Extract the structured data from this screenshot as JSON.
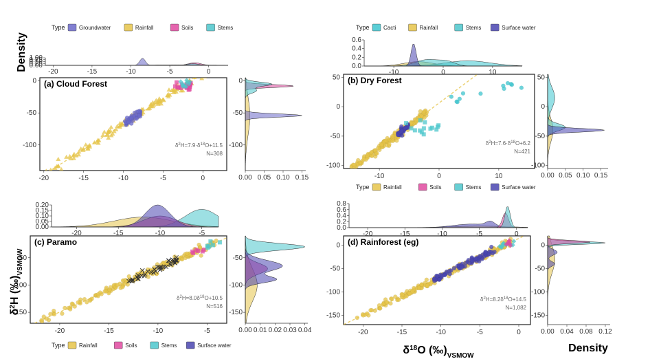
{
  "global_labels": {
    "density_top": "Density",
    "density_bottom": "Density",
    "y_label_main": "δ",
    "y_label_sup": "2",
    "y_label_tail": "H (‰)",
    "y_label_sub": "VSMOW",
    "x_label_main": "δ",
    "x_label_sup": "18",
    "x_label_tail": "O (‰)",
    "x_label_sub": "VSMOW"
  },
  "legend_title": "Type",
  "colors": {
    "Groundwater": "#6b69c9",
    "Rainfall": "#e6c44a",
    "Soils": "#e04aa0",
    "Stems": "#4dc7cc",
    "Surface water": "#4a45b0",
    "Cacti": "#3ec6cf",
    "Overlap": "#5b2a86"
  },
  "chart_data": [
    {
      "id": "a",
      "type": "scatter",
      "title": "(a) Cloud Forest",
      "legend": [
        "Groundwater",
        "Rainfall",
        "Soils",
        "Stems"
      ],
      "xlim": [
        -20.5,
        3
      ],
      "ylim": [
        -140,
        5
      ],
      "xticks": [
        -20,
        -15,
        -10,
        -5,
        0
      ],
      "yticks": [
        0,
        -50,
        -100
      ],
      "equation": {
        "pre": "δ",
        "sup1": "2",
        "mid": "H=7.9·δ",
        "sup2": "18",
        "post": "O+11.5"
      },
      "n_label": "N=308",
      "regression": {
        "slope": 7.9,
        "intercept": 11.5
      },
      "series": [
        {
          "name": "Rainfall",
          "marker": "triangle",
          "x_range": [
            -20,
            2
          ],
          "n": 150
        },
        {
          "name": "Groundwater",
          "marker": "circle",
          "x_range": [
            -9.8,
            -7.8
          ],
          "n": 40
        },
        {
          "name": "Soils",
          "marker": "square",
          "x_range": [
            -3.5,
            -1.5
          ],
          "n": 20
        },
        {
          "name": "Stems",
          "marker": "diamond",
          "x_range": [
            -2.8,
            -1.5
          ],
          "n": 10
        }
      ],
      "top_density": {
        "xlim": [
          -21,
          2.5
        ],
        "ylim": [
          0,
          1.0
        ],
        "xticks": [
          -20,
          -15,
          -10,
          -5,
          0
        ],
        "yticks": [
          1.0,
          0.75,
          0.5,
          0.25,
          0.0
        ],
        "ytick_labels": [
          "1.00",
          "0.75",
          "0.50",
          "0.25",
          "0.00"
        ],
        "curves": [
          {
            "name": "Rainfall",
            "peaks": [
              {
                "m": -4,
                "s": 4.5,
                "h": 0.06
              }
            ]
          },
          {
            "name": "Soils",
            "peaks": [
              {
                "m": -1.8,
                "s": 0.8,
                "h": 0.35
              }
            ]
          },
          {
            "name": "Stems",
            "peaks": [
              {
                "m": -2.0,
                "s": 0.7,
                "h": 0.22
              }
            ]
          },
          {
            "name": "Groundwater",
            "peaks": [
              {
                "m": -8.5,
                "s": 0.35,
                "h": 0.95
              }
            ]
          }
        ]
      },
      "side_density": {
        "xlim": [
          0,
          0.16
        ],
        "ylim": [
          -140,
          5
        ],
        "xticks": [
          0.0,
          0.05,
          0.1,
          0.15
        ],
        "xtick_labels": [
          "0.00",
          "0.05",
          "0.10",
          "0.15"
        ],
        "yticks": [
          0,
          -50,
          -100
        ],
        "curves": [
          {
            "name": "Rainfall",
            "peaks": [
              {
                "m": -55,
                "s": 30,
                "h": 0.012
              }
            ]
          },
          {
            "name": "Groundwater",
            "peaks": [
              {
                "m": -54,
                "s": 2.5,
                "h": 0.15
              }
            ]
          },
          {
            "name": "Soils",
            "peaks": [
              {
                "m": -8,
                "s": 2.2,
                "h": 0.13
              }
            ]
          },
          {
            "name": "Stems",
            "peaks": [
              {
                "m": -5,
                "s": 3,
                "h": 0.07
              },
              {
                "m": -15,
                "s": 4,
                "h": 0.03
              }
            ]
          }
        ]
      }
    },
    {
      "id": "b",
      "type": "scatter",
      "title": "(b) Dry Forest",
      "legend": [
        "Cacti",
        "Rainfall",
        "Stems",
        "Surface water"
      ],
      "xlim": [
        -16,
        16
      ],
      "ylim": [
        -105,
        55
      ],
      "xticks": [
        -10,
        0,
        10
      ],
      "yticks": [
        50,
        0,
        -50,
        -100
      ],
      "equation": {
        "pre": "δ",
        "sup1": "2",
        "mid": "H=7.6·δ",
        "sup2": "18",
        "post": "O+6.2"
      },
      "n_label": "N=421",
      "regression": {
        "slope": 7.6,
        "intercept": 6.2
      },
      "series": [
        {
          "name": "Rainfall",
          "marker": "circle",
          "x_range": [
            -15,
            -2
          ],
          "n": 160
        },
        {
          "name": "Surface water",
          "marker": "circle",
          "x_range": [
            -7,
            -5
          ],
          "n": 40
        },
        {
          "name": "Stems",
          "marker": "square",
          "x_range": [
            -6,
            1
          ],
          "n": 14
        },
        {
          "name": "Cacti",
          "marker": "circle",
          "x_range": [
            2,
            14
          ],
          "n": 12
        }
      ],
      "top_density": {
        "xlim": [
          -16,
          16
        ],
        "ylim": [
          0,
          0.6
        ],
        "xticks": [
          -10,
          0,
          10
        ],
        "yticks": [
          0.6,
          0.4,
          0.2,
          0.0
        ],
        "ytick_labels": [
          "0.6",
          "0.4",
          "0.2",
          "0.0"
        ],
        "curves": [
          {
            "name": "Rainfall",
            "peaks": [
              {
                "m": -5,
                "s": 3,
                "h": 0.1
              }
            ]
          },
          {
            "name": "Cacti",
            "peaks": [
              {
                "m": 5,
                "s": 4.5,
                "h": 0.12
              }
            ]
          },
          {
            "name": "Stems",
            "peaks": [
              {
                "m": -3,
                "s": 2.5,
                "h": 0.15
              },
              {
                "m": 1,
                "s": 1.5,
                "h": 0.08
              }
            ]
          },
          {
            "name": "Surface water",
            "peaks": [
              {
                "m": -6,
                "s": 0.5,
                "h": 0.52
              }
            ]
          }
        ]
      },
      "side_density": {
        "xlim": [
          0,
          0.17
        ],
        "ylim": [
          -105,
          55
        ],
        "xticks": [
          0.0,
          0.05,
          0.1,
          0.15
        ],
        "xtick_labels": [
          "0.00",
          "0.05",
          "0.10",
          "0.15"
        ],
        "yticks": [
          50,
          0,
          -50,
          -100
        ],
        "curves": [
          {
            "name": "Rainfall",
            "peaks": [
              {
                "m": -40,
                "s": 20,
                "h": 0.015
              }
            ]
          },
          {
            "name": "Cacti",
            "peaks": [
              {
                "m": 15,
                "s": 18,
                "h": 0.02
              }
            ]
          },
          {
            "name": "Stems",
            "peaks": [
              {
                "m": -35,
                "s": 6,
                "h": 0.05
              }
            ]
          },
          {
            "name": "Surface water",
            "peaks": [
              {
                "m": -40,
                "s": 3,
                "h": 0.16
              }
            ]
          }
        ]
      }
    },
    {
      "id": "c",
      "type": "scatter",
      "title": "(c) Paramo",
      "legend": [
        "Rainfall",
        "Soils",
        "Stems",
        "Surface water"
      ],
      "xlim": [
        -23,
        -3
      ],
      "ylim": [
        -170,
        -10
      ],
      "xticks": [
        -20,
        -15,
        -10,
        -5
      ],
      "yticks": [
        -50,
        -100,
        -150
      ],
      "equation": {
        "pre": "δ",
        "sup1": "2",
        "mid": "H=8.0δ",
        "sup2": "18",
        "post": "O+10.5"
      },
      "n_label": "N=516",
      "regression": {
        "slope": 8.0,
        "intercept": 10.5
      },
      "series": [
        {
          "name": "Rainfall",
          "marker": "circle",
          "x_range": [
            -22,
            -4
          ],
          "n": 170
        },
        {
          "name": "Surface water",
          "marker": "cross",
          "x_range": [
            -13,
            -8
          ],
          "n": 40
        },
        {
          "name": "Soils",
          "marker": "square",
          "x_range": [
            -7,
            -5
          ],
          "n": 6
        },
        {
          "name": "Stems",
          "marker": "square",
          "x_range": [
            -5,
            -3.5
          ],
          "n": 6
        }
      ],
      "top_density": {
        "xlim": [
          -23,
          -3
        ],
        "ylim": [
          0,
          0.2
        ],
        "xticks": [
          -20,
          -15,
          -10,
          -5
        ],
        "yticks": [
          0.2,
          0.15,
          0.1,
          0.05,
          0.0
        ],
        "ytick_labels": [
          "0.20",
          "0.15",
          "0.10",
          "0.05",
          "0.00"
        ],
        "curves": [
          {
            "name": "Rainfall",
            "peaks": [
              {
                "m": -12,
                "s": 3.5,
                "h": 0.09
              }
            ]
          },
          {
            "name": "Stems",
            "peaks": [
              {
                "m": -5,
                "s": 2,
                "h": 0.16
              }
            ]
          },
          {
            "name": "Soils",
            "peaks": [
              {
                "m": -10,
                "s": 2,
                "h": 0.1
              }
            ]
          },
          {
            "name": "Surface water",
            "peaks": [
              {
                "m": -10.3,
                "s": 1.5,
                "h": 0.2
              }
            ]
          }
        ]
      },
      "side_density": {
        "xlim": [
          0,
          0.042
        ],
        "ylim": [
          -170,
          -10
        ],
        "xticks": [
          0.0,
          0.01,
          0.02,
          0.03,
          0.04
        ],
        "xtick_labels": [
          "0.00",
          "0.01",
          "0.02",
          "0.03",
          "0.04"
        ],
        "yticks": [
          -50,
          -100,
          -150
        ],
        "curves": [
          {
            "name": "Rainfall",
            "peaks": [
              {
                "m": -100,
                "s": 30,
                "h": 0.008
              }
            ]
          },
          {
            "name": "Stems",
            "peaks": [
              {
                "m": -30,
                "s": 6,
                "h": 0.04
              }
            ]
          },
          {
            "name": "Soils",
            "peaks": [
              {
                "m": -70,
                "s": 10,
                "h": 0.015
              }
            ]
          },
          {
            "name": "Surface water",
            "peaks": [
              {
                "m": -65,
                "s": 10,
                "h": 0.025
              },
              {
                "m": -90,
                "s": 6,
                "h": 0.02
              }
            ]
          }
        ]
      }
    },
    {
      "id": "d",
      "type": "scatter",
      "title": "(d) Rainforest (eg)",
      "legend": [
        "Rainfall",
        "Soils",
        "Stems",
        "Surface water"
      ],
      "xlim": [
        -22.5,
        1.5
      ],
      "ylim": [
        -170,
        20
      ],
      "xticks": [
        -20,
        -15,
        -10,
        -5,
        0
      ],
      "yticks": [
        0,
        -50,
        -100,
        -150
      ],
      "equation": {
        "pre": "δ",
        "sup1": "2",
        "mid": "H=8.2δ",
        "sup2": "18",
        "post": "O+14.5"
      },
      "n_label": "N=1,082",
      "regression": {
        "slope": 8.2,
        "intercept": 14.5
      },
      "series": [
        {
          "name": "Rainfall",
          "marker": "circle",
          "x_range": [
            -21,
            -1
          ],
          "n": 200
        },
        {
          "name": "Surface water",
          "marker": "circle",
          "x_range": [
            -11,
            -3
          ],
          "n": 80
        },
        {
          "name": "Stems",
          "marker": "diamond",
          "x_range": [
            -2.5,
            -0.5
          ],
          "n": 12
        },
        {
          "name": "Soils",
          "marker": "diamond",
          "x_range": [
            -2,
            -1
          ],
          "n": 6
        }
      ],
      "top_density": {
        "xlim": [
          -22.5,
          1.5
        ],
        "ylim": [
          0,
          0.8
        ],
        "xticks": [
          -20,
          -15,
          -10,
          -5,
          0
        ],
        "yticks": [
          0.8,
          0.6,
          0.4,
          0.2,
          0.0
        ],
        "ytick_labels": [
          "0.8",
          "0.6",
          "0.4",
          "0.2",
          "0.0"
        ],
        "curves": [
          {
            "name": "Rainfall",
            "peaks": [
              {
                "m": -5,
                "s": 4,
                "h": 0.05
              }
            ]
          },
          {
            "name": "Surface water",
            "peaks": [
              {
                "m": -6,
                "s": 2.5,
                "h": 0.12
              },
              {
                "m": -3.5,
                "s": 0.6,
                "h": 0.15
              }
            ]
          },
          {
            "name": "Soils",
            "peaks": [
              {
                "m": -1.5,
                "s": 0.4,
                "h": 0.5
              }
            ]
          },
          {
            "name": "Stems",
            "peaks": [
              {
                "m": -1.2,
                "s": 0.35,
                "h": 0.72
              }
            ]
          }
        ]
      },
      "side_density": {
        "xlim": [
          0,
          0.13
        ],
        "ylim": [
          -170,
          20
        ],
        "xticks": [
          0.0,
          0.04,
          0.08,
          0.12
        ],
        "xtick_labels": [
          "0.00",
          "0.04",
          "0.08",
          "0.12"
        ],
        "yticks": [
          0,
          -50,
          -100,
          -150
        ],
        "curves": [
          {
            "name": "Rainfall",
            "peaks": [
              {
                "m": -30,
                "s": 30,
                "h": 0.015
              }
            ]
          },
          {
            "name": "Stems",
            "peaks": [
              {
                "m": 5,
                "s": 3,
                "h": 0.12
              }
            ]
          },
          {
            "name": "Soils",
            "peaks": [
              {
                "m": 7,
                "s": 3,
                "h": 0.09
              }
            ]
          },
          {
            "name": "Surface water",
            "peaks": [
              {
                "m": -15,
                "s": 6,
                "h": 0.02
              },
              {
                "m": -40,
                "s": 5,
                "h": 0.015
              }
            ]
          }
        ]
      }
    }
  ]
}
